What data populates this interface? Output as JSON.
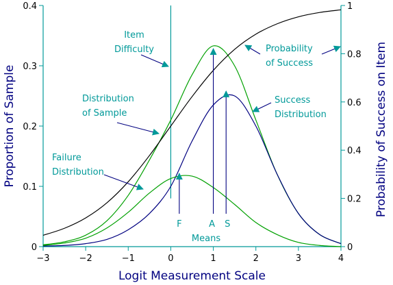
{
  "chart_data": {
    "type": "line",
    "x_axis": {
      "label": "Logit Measurement Scale",
      "range": [
        -3,
        4
      ],
      "ticks": [
        -3,
        -2,
        -1,
        0,
        1,
        2,
        3,
        4
      ],
      "tick_labels": [
        "−3",
        "−2",
        "−1",
        "0",
        "1",
        "2",
        "3",
        "4"
      ]
    },
    "y_left": {
      "label": "Proportion of Sample",
      "range": [
        0,
        0.4
      ],
      "ticks": [
        0,
        0.1,
        0.2,
        0.3,
        0.4
      ],
      "tick_labels": [
        "0",
        "0.1",
        "0.2",
        "0.3",
        "0.4"
      ]
    },
    "y_right": {
      "label": "Probability of Success on Item",
      "range": [
        0,
        1
      ],
      "ticks": [
        0,
        0.2,
        0.4,
        0.6,
        0.8,
        1
      ],
      "tick_labels": [
        "0",
        "0.2",
        "0.4",
        "0.6",
        "0.8",
        "1"
      ]
    },
    "item_difficulty": 0,
    "means": {
      "F": 0.2,
      "A": 1.0,
      "S": 1.3
    },
    "series": [
      {
        "name": "Distribution of Sample",
        "axis": "left",
        "color": "#00a000",
        "x": [
          -3,
          -2.5,
          -2,
          -1.5,
          -1,
          -0.5,
          0,
          0.5,
          1,
          1.5,
          2,
          2.5,
          3,
          3.5,
          4
        ],
        "y": [
          0.003,
          0.008,
          0.019,
          0.043,
          0.085,
          0.144,
          0.21,
          0.285,
          0.333,
          0.3,
          0.21,
          0.12,
          0.055,
          0.02,
          0.005
        ]
      },
      {
        "name": "Success Distribution",
        "axis": "left",
        "color": "#000080",
        "x": [
          -3,
          -2.5,
          -2,
          -1.5,
          -1,
          -0.5,
          0,
          0.5,
          1,
          1.5,
          2,
          2.5,
          3,
          3.5,
          4
        ],
        "y": [
          0.001,
          0.002,
          0.005,
          0.012,
          0.028,
          0.055,
          0.1,
          0.175,
          0.235,
          0.25,
          0.2,
          0.12,
          0.055,
          0.02,
          0.005
        ]
      },
      {
        "name": "Failure Distribution",
        "axis": "left",
        "color": "#00a000",
        "x": [
          -3,
          -2.5,
          -2,
          -1.5,
          -1,
          -0.5,
          0,
          0.5,
          1,
          1.5,
          2,
          2.5,
          3,
          3.5,
          4
        ],
        "y": [
          0.002,
          0.006,
          0.014,
          0.031,
          0.057,
          0.089,
          0.113,
          0.117,
          0.098,
          0.07,
          0.04,
          0.02,
          0.007,
          0.002,
          0.0
        ]
      },
      {
        "name": "Probability of Success",
        "axis": "right",
        "color": "#000000",
        "x": [
          -3,
          -2.5,
          -2,
          -1.5,
          -1,
          -0.5,
          0,
          0.5,
          1,
          1.5,
          2,
          2.5,
          3,
          3.5,
          4
        ],
        "y": [
          0.047,
          0.076,
          0.119,
          0.182,
          0.269,
          0.378,
          0.5,
          0.622,
          0.731,
          0.818,
          0.881,
          0.924,
          0.953,
          0.971,
          0.982
        ]
      }
    ],
    "annotations": [
      {
        "key": "item_difficulty",
        "lines": [
          "Item",
          "Difficulty"
        ]
      },
      {
        "key": "distribution_of_sample",
        "lines": [
          "Distribution",
          "of Sample"
        ]
      },
      {
        "key": "failure_distribution",
        "lines": [
          "Failure",
          "Distribution"
        ]
      },
      {
        "key": "probability_of_success",
        "lines": [
          "Probability",
          "of Success"
        ]
      },
      {
        "key": "success_distribution",
        "lines": [
          "Success",
          "Distribution"
        ]
      },
      {
        "key": "mean_F",
        "lines": [
          "F"
        ]
      },
      {
        "key": "mean_A",
        "lines": [
          "A"
        ]
      },
      {
        "key": "mean_S",
        "lines": [
          "S"
        ]
      },
      {
        "key": "means",
        "lines": [
          "Means"
        ]
      }
    ],
    "colors": {
      "axis": "#009999",
      "axis_title": "#000080",
      "annotation": "#009999",
      "tick_label": "#000000"
    }
  }
}
